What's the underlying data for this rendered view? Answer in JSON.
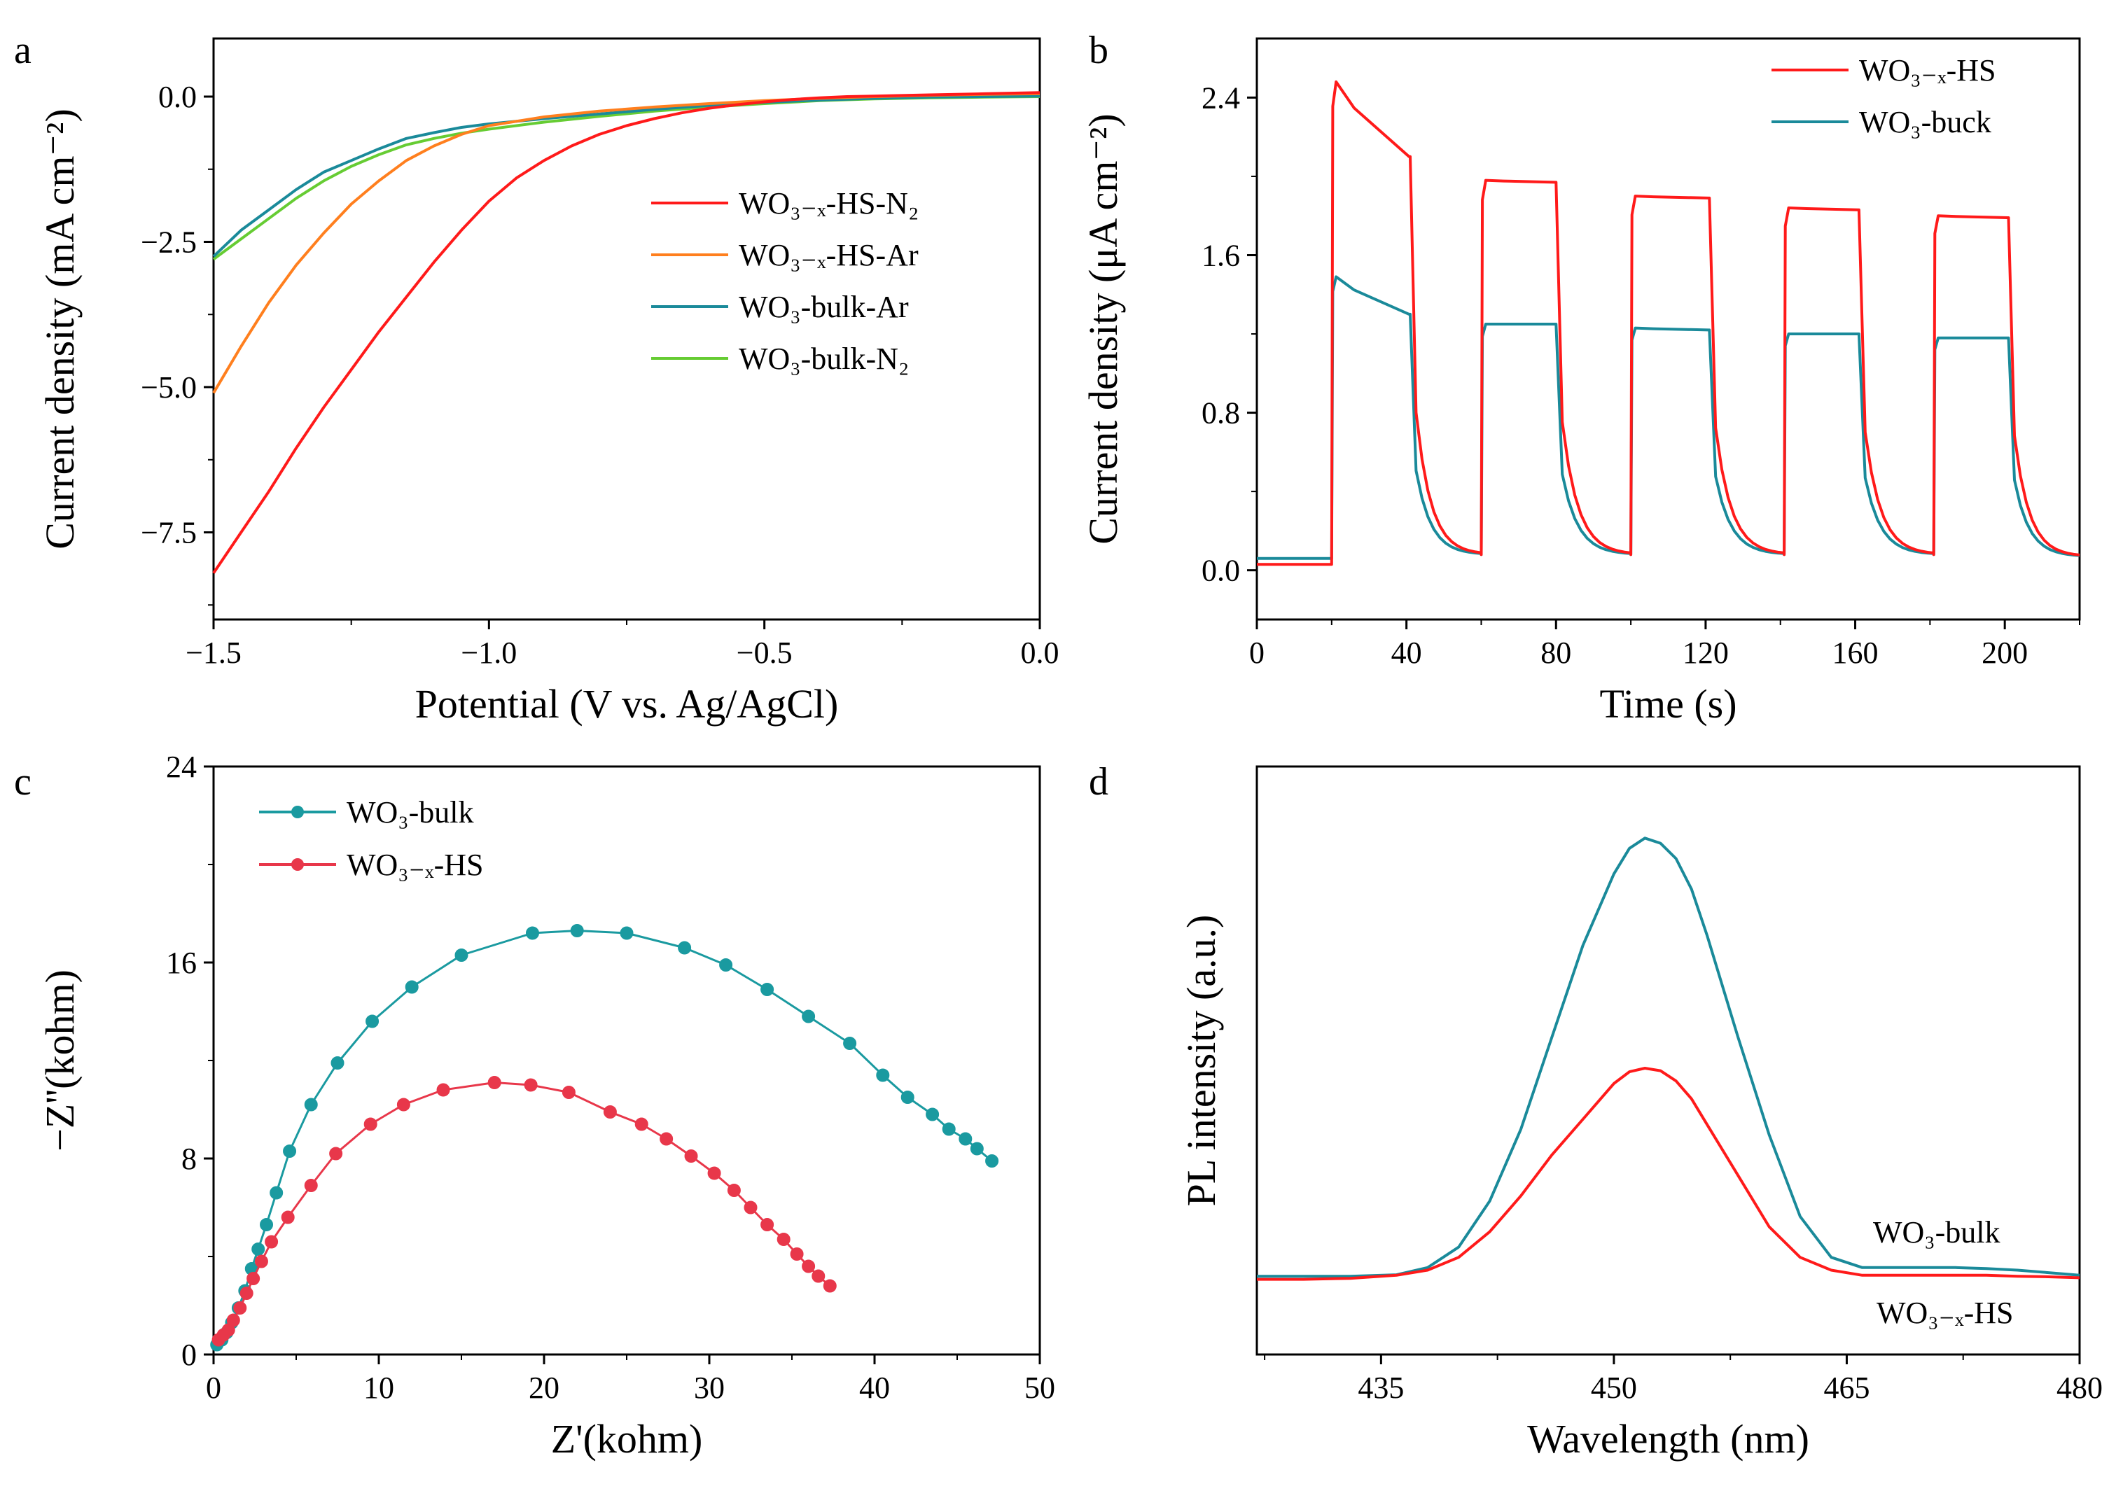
{
  "figure": {
    "panels": [
      "a",
      "b",
      "c",
      "d"
    ]
  },
  "chart_data": [
    {
      "panel": "a",
      "type": "line",
      "xlabel": "Potential (V vs. Ag/AgCl)",
      "ylabel": "Current density (mA cm⁻²)",
      "xlim": [
        -1.5,
        0.0
      ],
      "ylim": [
        -9.0,
        1.0
      ],
      "xticks": [
        -1.5,
        -1.0,
        -0.5,
        0.0
      ],
      "xtick_labels": [
        "−1.5",
        "−1.0",
        "−0.5",
        "0.0"
      ],
      "yticks": [
        0.0,
        -2.5,
        -5.0,
        -7.5
      ],
      "ytick_labels": [
        "0.0",
        "−2.5",
        "−5.0",
        "−7.5"
      ],
      "legend_position": "center-right",
      "series": [
        {
          "name": "WO₃₋ₓ-HS-N₂",
          "color": "#ff1a1a",
          "x": [
            -1.5,
            -1.45,
            -1.4,
            -1.35,
            -1.3,
            -1.25,
            -1.2,
            -1.15,
            -1.1,
            -1.05,
            -1.0,
            -0.95,
            -0.9,
            -0.85,
            -0.8,
            -0.75,
            -0.7,
            -0.65,
            -0.6,
            -0.55,
            -0.5,
            -0.45,
            -0.4,
            -0.35,
            -0.3,
            -0.2,
            -0.1,
            0.0
          ],
          "y": [
            -8.2,
            -7.5,
            -6.8,
            -6.05,
            -5.35,
            -4.7,
            -4.05,
            -3.45,
            -2.85,
            -2.3,
            -1.8,
            -1.4,
            -1.1,
            -0.85,
            -0.65,
            -0.5,
            -0.38,
            -0.28,
            -0.2,
            -0.14,
            -0.09,
            -0.05,
            -0.02,
            0.0,
            0.01,
            0.03,
            0.05,
            0.07
          ]
        },
        {
          "name": "WO₃₋ₓ-HS-Ar",
          "color": "#ff7f1e",
          "x": [
            -1.5,
            -1.45,
            -1.4,
            -1.35,
            -1.3,
            -1.25,
            -1.2,
            -1.15,
            -1.1,
            -1.05,
            -1.0,
            -0.9,
            -0.8,
            -0.7,
            -0.6,
            -0.5,
            -0.4,
            -0.3,
            -0.2,
            -0.1,
            0.0
          ],
          "y": [
            -5.1,
            -4.3,
            -3.55,
            -2.9,
            -2.35,
            -1.85,
            -1.45,
            -1.1,
            -0.85,
            -0.65,
            -0.5,
            -0.35,
            -0.25,
            -0.18,
            -0.12,
            -0.07,
            -0.03,
            0.0,
            0.02,
            0.04,
            0.05
          ]
        },
        {
          "name": "WO₃-bulk-Ar",
          "color": "#1a8a9a",
          "x": [
            -1.5,
            -1.45,
            -1.4,
            -1.35,
            -1.3,
            -1.25,
            -1.2,
            -1.15,
            -1.1,
            -1.05,
            -1.0,
            -0.9,
            -0.8,
            -0.7,
            -0.6,
            -0.5,
            -0.4,
            -0.3,
            -0.2,
            -0.1,
            0.0
          ],
          "y": [
            -2.75,
            -2.3,
            -1.95,
            -1.6,
            -1.3,
            -1.1,
            -0.9,
            -0.72,
            -0.62,
            -0.53,
            -0.47,
            -0.38,
            -0.3,
            -0.22,
            -0.15,
            -0.1,
            -0.06,
            -0.03,
            -0.01,
            0.0,
            0.01
          ]
        },
        {
          "name": "WO₃-bulk-N₂",
          "color": "#66cc33",
          "x": [
            -1.5,
            -1.45,
            -1.4,
            -1.35,
            -1.3,
            -1.25,
            -1.2,
            -1.15,
            -1.1,
            -1.05,
            -1.0,
            -0.9,
            -0.8,
            -0.7,
            -0.6,
            -0.5,
            -0.4,
            -0.3,
            -0.2,
            -0.1,
            0.0
          ],
          "y": [
            -2.8,
            -2.45,
            -2.1,
            -1.75,
            -1.45,
            -1.2,
            -1.0,
            -0.83,
            -0.72,
            -0.63,
            -0.56,
            -0.44,
            -0.34,
            -0.25,
            -0.18,
            -0.12,
            -0.07,
            -0.04,
            -0.02,
            -0.01,
            0.0
          ]
        }
      ]
    },
    {
      "panel": "b",
      "type": "line",
      "xlabel": "Time (s)",
      "ylabel": "Current density (μA cm⁻²)",
      "xlim": [
        0,
        220
      ],
      "ylim": [
        -0.25,
        2.7
      ],
      "xticks": [
        0,
        40,
        80,
        120,
        160,
        200
      ],
      "xtick_labels": [
        "0",
        "40",
        "80",
        "120",
        "160",
        "200"
      ],
      "yticks": [
        0.0,
        0.8,
        1.6,
        2.4
      ],
      "ytick_labels": [
        "0.0",
        "0.8",
        "1.6",
        "2.4"
      ],
      "legend_position": "top-right",
      "light_on_off_cycles": {
        "on": [
          20,
          60,
          100,
          141,
          181
        ],
        "off": [
          41,
          80,
          121,
          161,
          201
        ]
      },
      "series": [
        {
          "name": "WO₃₋ₓ-HS",
          "color": "#ff1a1a",
          "baseline": 0.03,
          "peak": [
            2.48,
            1.98,
            1.9,
            1.84,
            1.8
          ],
          "plateau_end": [
            2.1,
            1.97,
            1.89,
            1.83,
            1.79
          ],
          "dark_end": [
            0.08,
            0.08,
            0.08,
            0.08,
            0.07
          ]
        },
        {
          "name": "WO₃-buck",
          "color": "#1a8a9a",
          "baseline": 0.06,
          "peak": [
            1.49,
            1.25,
            1.23,
            1.2,
            1.18
          ],
          "plateau_end": [
            1.3,
            1.25,
            1.22,
            1.2,
            1.18
          ],
          "dark_end": [
            0.08,
            0.08,
            0.08,
            0.08,
            0.07
          ]
        }
      ]
    },
    {
      "panel": "c",
      "type": "scatter",
      "xlabel": "Z'(kohm)",
      "ylabel": "−Z''(kohm)",
      "xlim": [
        0,
        50
      ],
      "ylim": [
        0,
        24
      ],
      "xticks": [
        0,
        10,
        20,
        30,
        40,
        50
      ],
      "xtick_labels": [
        "0",
        "10",
        "20",
        "30",
        "40",
        "50"
      ],
      "yticks": [
        0,
        8,
        16,
        24
      ],
      "ytick_labels": [
        "0",
        "8",
        "16",
        "24"
      ],
      "legend_position": "top-left",
      "series": [
        {
          "name": "WO₃-bulk",
          "color": "#1a9aa0",
          "x": [
            0.2,
            0.5,
            0.8,
            1.1,
            1.5,
            1.9,
            2.3,
            2.7,
            3.2,
            3.8,
            4.6,
            5.9,
            7.5,
            9.6,
            12.0,
            15.0,
            19.3,
            22.0,
            25.0,
            28.5,
            31.0,
            33.5,
            36.0,
            38.5,
            40.5,
            42.0,
            43.5,
            44.5,
            45.5,
            46.2,
            47.1
          ],
          "y": [
            0.4,
            0.6,
            0.9,
            1.3,
            1.9,
            2.6,
            3.5,
            4.3,
            5.3,
            6.6,
            8.3,
            10.2,
            11.9,
            13.6,
            15.0,
            16.3,
            17.2,
            17.3,
            17.2,
            16.6,
            15.9,
            14.9,
            13.8,
            12.7,
            11.4,
            10.5,
            9.8,
            9.2,
            8.8,
            8.4,
            7.9
          ]
        },
        {
          "name": "WO₃₋ₓ-HS",
          "color": "#e8374a",
          "x": [
            0.3,
            0.6,
            0.9,
            1.2,
            1.6,
            2.0,
            2.4,
            2.9,
            3.5,
            4.5,
            5.9,
            7.4,
            9.5,
            11.5,
            13.9,
            17.0,
            19.2,
            21.5,
            24.0,
            25.9,
            27.4,
            28.9,
            30.3,
            31.5,
            32.5,
            33.5,
            34.5,
            35.3,
            36.0,
            36.6,
            37.3
          ],
          "y": [
            0.6,
            0.8,
            1.0,
            1.4,
            1.9,
            2.5,
            3.1,
            3.8,
            4.6,
            5.6,
            6.9,
            8.2,
            9.4,
            10.2,
            10.8,
            11.1,
            11.0,
            10.7,
            9.9,
            9.4,
            8.8,
            8.1,
            7.4,
            6.7,
            6.0,
            5.3,
            4.7,
            4.1,
            3.6,
            3.2,
            2.8
          ]
        }
      ]
    },
    {
      "panel": "d",
      "type": "line",
      "xlabel": "Wavelength (nm)",
      "ylabel": "PL intensity (a.u.)",
      "xlim": [
        427,
        480
      ],
      "ylim": [
        0,
        1.15
      ],
      "xticks": [
        435,
        450,
        465,
        480
      ],
      "xtick_labels": [
        "435",
        "450",
        "465",
        "480"
      ],
      "yticks": [],
      "annotations": [
        {
          "text": "WO₃-bulk",
          "series": "WO₃-bulk",
          "position": "right, above curve"
        },
        {
          "text": "WO₃₋ₓ-HS",
          "series": "WO₃₋ₓ-HS",
          "position": "right, below curve"
        }
      ],
      "series": [
        {
          "name": "WO₃-bulk",
          "color": "#1a8a9a",
          "x": [
            427,
            430,
            433,
            436,
            438,
            440,
            442,
            444,
            446,
            448,
            450,
            451,
            452,
            453,
            454,
            455,
            456,
            458,
            460,
            462,
            464,
            466,
            468,
            470,
            472,
            474,
            476,
            478,
            480
          ],
          "y": [
            0.153,
            0.153,
            0.153,
            0.156,
            0.17,
            0.21,
            0.3,
            0.44,
            0.62,
            0.8,
            0.94,
            0.99,
            1.01,
            1.0,
            0.97,
            0.91,
            0.82,
            0.62,
            0.43,
            0.27,
            0.19,
            0.17,
            0.17,
            0.17,
            0.17,
            0.168,
            0.165,
            0.16,
            0.155
          ]
        },
        {
          "name": "WO₃₋ₓ-HS",
          "color": "#ff1a1a",
          "x": [
            427,
            430,
            433,
            436,
            438,
            440,
            442,
            444,
            446,
            448,
            450,
            451,
            452,
            453,
            454,
            455,
            456,
            458,
            460,
            462,
            464,
            466,
            468,
            470,
            472,
            474,
            476,
            478,
            480
          ],
          "y": [
            0.147,
            0.147,
            0.149,
            0.155,
            0.165,
            0.19,
            0.24,
            0.31,
            0.39,
            0.46,
            0.53,
            0.553,
            0.56,
            0.555,
            0.535,
            0.5,
            0.45,
            0.35,
            0.25,
            0.19,
            0.165,
            0.155,
            0.155,
            0.155,
            0.155,
            0.155,
            0.153,
            0.152,
            0.15
          ]
        }
      ]
    }
  ]
}
